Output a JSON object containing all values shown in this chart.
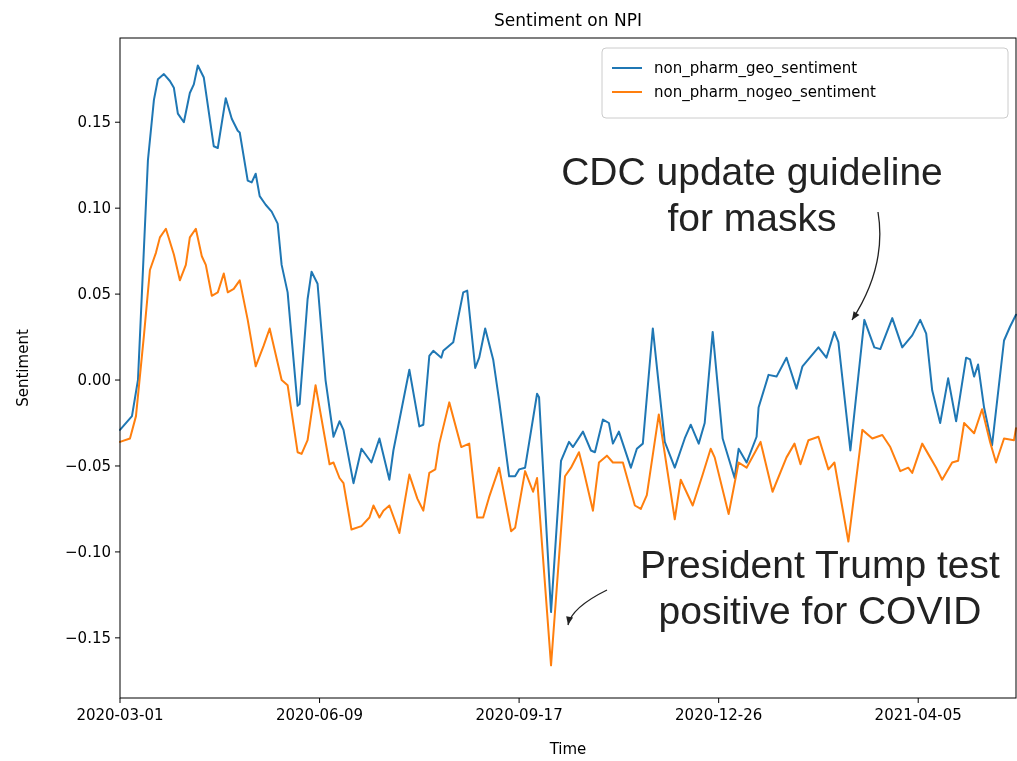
{
  "chart_data": {
    "type": "line",
    "title": "Sentiment on NPI",
    "xlabel": "Time",
    "ylabel": "Sentiment",
    "xlim": [
      "2020-03-01",
      "2021-05-24"
    ],
    "xticks": [
      "2020-03-01",
      "2020-06-09",
      "2020-09-17",
      "2020-12-26",
      "2021-04-05"
    ],
    "ylim": [
      -0.185,
      0.199
    ],
    "yticks": [
      {
        "value": -0.15,
        "label": "−0.15"
      },
      {
        "value": -0.1,
        "label": "−0.10"
      },
      {
        "value": -0.05,
        "label": "−0.05"
      },
      {
        "value": 0,
        "label": "0.00"
      },
      {
        "value": 0.05,
        "label": "0.05"
      },
      {
        "value": 0.1,
        "label": "0.10"
      },
      {
        "value": 0.15,
        "label": "0.15"
      }
    ],
    "legend": "top right",
    "grid": false,
    "annotations": [
      "CDC update guideline\nfor masks",
      "President Trump test\npositive for COVID"
    ],
    "series": [
      {
        "name": "non_pharm_geo_sentiment",
        "color": "#1f77b4",
        "x": [
          "2020-03-01",
          "2020-03-07",
          "2020-03-10",
          "2020-03-15",
          "2020-03-18",
          "2020-03-20",
          "2020-03-23",
          "2020-03-26",
          "2020-03-28",
          "2020-03-30",
          "2020-04-02",
          "2020-04-05",
          "2020-04-07",
          "2020-04-09",
          "2020-04-12",
          "2020-04-17",
          "2020-04-19",
          "2020-04-23",
          "2020-04-26",
          "2020-04-29",
          "2020-04-30",
          "2020-05-04",
          "2020-05-06",
          "2020-05-08",
          "2020-05-10",
          "2020-05-13",
          "2020-05-16",
          "2020-05-19",
          "2020-05-21",
          "2020-05-24",
          "2020-05-29",
          "2020-05-30",
          "2020-06-03",
          "2020-06-05",
          "2020-06-08",
          "2020-06-12",
          "2020-06-16",
          "2020-06-19",
          "2020-06-21",
          "2020-06-26",
          "2020-06-30",
          "2020-07-05",
          "2020-07-09",
          "2020-07-14",
          "2020-07-16",
          "2020-07-24",
          "2020-07-29",
          "2020-07-31",
          "2020-08-03",
          "2020-08-05",
          "2020-08-09",
          "2020-08-10",
          "2020-08-15",
          "2020-08-20",
          "2020-08-22",
          "2020-08-26",
          "2020-08-28",
          "2020-08-31",
          "2020-09-04",
          "2020-09-07",
          "2020-09-12",
          "2020-09-15",
          "2020-09-17",
          "2020-09-20",
          "2020-09-26",
          "2020-09-27",
          "2020-10-03",
          "2020-10-08",
          "2020-10-12",
          "2020-10-14",
          "2020-10-19",
          "2020-10-23",
          "2020-10-25",
          "2020-10-29",
          "2020-11-01",
          "2020-11-03",
          "2020-11-06",
          "2020-11-12",
          "2020-11-15",
          "2020-11-18",
          "2020-11-23",
          "2020-11-29",
          "2020-12-04",
          "2020-12-09",
          "2020-12-12",
          "2020-12-16",
          "2020-12-19",
          "2020-12-23",
          "2020-12-28",
          "2021-01-03",
          "2021-01-05",
          "2021-01-09",
          "2021-01-14",
          "2021-01-15",
          "2021-01-20",
          "2021-01-24",
          "2021-01-29",
          "2021-02-03",
          "2021-02-06",
          "2021-02-14",
          "2021-02-18",
          "2021-02-22",
          "2021-02-24",
          "2021-03-02",
          "2021-03-09",
          "2021-03-14",
          "2021-03-17",
          "2021-03-23",
          "2021-03-28",
          "2021-04-02",
          "2021-04-06",
          "2021-04-09",
          "2021-04-12",
          "2021-04-16",
          "2021-04-20",
          "2021-04-24",
          "2021-04-29",
          "2021-05-01",
          "2021-05-03",
          "2021-05-05",
          "2021-05-08",
          "2021-05-12",
          "2021-05-18",
          "2021-05-21",
          "2021-05-24"
        ],
        "values": [
          -0.029,
          -0.021,
          0.0,
          0.128,
          0.163,
          0.175,
          0.178,
          0.174,
          0.17,
          0.155,
          0.15,
          0.167,
          0.172,
          0.183,
          0.176,
          0.136,
          0.135,
          0.164,
          0.152,
          0.145,
          0.144,
          0.116,
          0.115,
          0.12,
          0.107,
          0.102,
          0.098,
          0.091,
          0.067,
          0.051,
          -0.015,
          -0.014,
          0.047,
          0.063,
          0.056,
          0.0,
          -0.033,
          -0.024,
          -0.029,
          -0.06,
          -0.04,
          -0.048,
          -0.034,
          -0.058,
          -0.041,
          0.006,
          -0.027,
          -0.026,
          0.014,
          0.017,
          0.013,
          0.017,
          0.022,
          0.051,
          0.052,
          0.007,
          0.013,
          0.03,
          0.012,
          -0.012,
          -0.056,
          -0.056,
          -0.052,
          -0.051,
          -0.008,
          -0.01,
          -0.135,
          -0.047,
          -0.036,
          -0.039,
          -0.03,
          -0.041,
          -0.042,
          -0.023,
          -0.025,
          -0.037,
          -0.03,
          -0.051,
          -0.04,
          -0.037,
          0.03,
          -0.036,
          -0.051,
          -0.034,
          -0.026,
          -0.037,
          -0.025,
          0.028,
          -0.034,
          -0.057,
          -0.04,
          -0.048,
          -0.033,
          -0.016,
          0.003,
          0.002,
          0.013,
          -0.005,
          0.008,
          0.019,
          0.013,
          0.028,
          0.022,
          -0.041,
          0.035,
          0.019,
          0.018,
          0.036,
          0.019,
          0.026,
          0.035,
          0.027,
          -0.006,
          -0.025,
          0.001,
          -0.024,
          0.013,
          0.012,
          0.002,
          0.009,
          -0.016,
          -0.038,
          0.023,
          0.031,
          0.038
        ]
      },
      {
        "name": "non_pharm_nogeo_sentiment",
        "color": "#ff7f0e",
        "x": [
          "2020-03-01",
          "2020-03-06",
          "2020-03-09",
          "2020-03-13",
          "2020-03-16",
          "2020-03-19",
          "2020-03-21",
          "2020-03-24",
          "2020-03-28",
          "2020-03-31",
          "2020-04-03",
          "2020-04-05",
          "2020-04-08",
          "2020-04-11",
          "2020-04-13",
          "2020-04-16",
          "2020-04-19",
          "2020-04-22",
          "2020-04-24",
          "2020-04-27",
          "2020-04-30",
          "2020-05-04",
          "2020-05-08",
          "2020-05-12",
          "2020-05-15",
          "2020-05-21",
          "2020-05-24",
          "2020-05-29",
          "2020-05-31",
          "2020-06-03",
          "2020-06-07",
          "2020-06-14",
          "2020-06-16",
          "2020-06-19",
          "2020-06-21",
          "2020-06-25",
          "2020-06-30",
          "2020-07-04",
          "2020-07-06",
          "2020-07-09",
          "2020-07-11",
          "2020-07-14",
          "2020-07-19",
          "2020-07-24",
          "2020-07-28",
          "2020-07-31",
          "2020-08-03",
          "2020-08-06",
          "2020-08-08",
          "2020-08-13",
          "2020-08-19",
          "2020-08-23",
          "2020-08-27",
          "2020-08-30",
          "2020-09-02",
          "2020-09-07",
          "2020-09-13",
          "2020-09-15",
          "2020-09-20",
          "2020-09-24",
          "2020-09-26",
          "2020-10-03",
          "2020-10-10",
          "2020-10-13",
          "2020-10-17",
          "2020-10-19",
          "2020-10-24",
          "2020-10-27",
          "2020-10-31",
          "2020-11-03",
          "2020-11-08",
          "2020-11-14",
          "2020-11-17",
          "2020-11-20",
          "2020-11-26",
          "2020-12-04",
          "2020-12-07",
          "2020-12-13",
          "2020-12-18",
          "2020-12-22",
          "2020-12-24",
          "2020-12-31",
          "2021-01-05",
          "2021-01-09",
          "2021-01-16",
          "2021-01-22",
          "2021-01-29",
          "2021-02-02",
          "2021-02-05",
          "2021-02-09",
          "2021-02-14",
          "2021-02-19",
          "2021-02-22",
          "2021-03-01",
          "2021-03-08",
          "2021-03-13",
          "2021-03-18",
          "2021-03-22",
          "2021-03-27",
          "2021-03-31",
          "2021-04-02",
          "2021-04-07",
          "2021-04-11",
          "2021-04-14",
          "2021-04-17",
          "2021-04-22",
          "2021-04-25",
          "2021-04-28",
          "2021-05-03",
          "2021-05-07",
          "2021-05-11",
          "2021-05-14",
          "2021-05-18",
          "2021-05-23",
          "2021-05-24"
        ],
        "values": [
          -0.036,
          -0.034,
          -0.021,
          0.026,
          0.064,
          0.074,
          0.083,
          0.088,
          0.073,
          0.058,
          0.067,
          0.083,
          0.088,
          0.072,
          0.067,
          0.049,
          0.051,
          0.062,
          0.051,
          0.053,
          0.058,
          0.035,
          0.008,
          0.02,
          0.03,
          0.0,
          -0.003,
          -0.042,
          -0.043,
          -0.035,
          -0.003,
          -0.049,
          -0.048,
          -0.057,
          -0.06,
          -0.087,
          -0.085,
          -0.08,
          -0.073,
          -0.08,
          -0.076,
          -0.073,
          -0.089,
          -0.055,
          -0.069,
          -0.076,
          -0.054,
          -0.052,
          -0.037,
          -0.013,
          -0.039,
          -0.037,
          -0.08,
          -0.08,
          -0.068,
          -0.051,
          -0.088,
          -0.086,
          -0.053,
          -0.065,
          -0.057,
          -0.166,
          -0.056,
          -0.051,
          -0.042,
          -0.051,
          -0.076,
          -0.048,
          -0.044,
          -0.048,
          -0.048,
          -0.073,
          -0.075,
          -0.067,
          -0.02,
          -0.081,
          -0.058,
          -0.073,
          -0.055,
          -0.04,
          -0.045,
          -0.078,
          -0.048,
          -0.051,
          -0.036,
          -0.065,
          -0.045,
          -0.037,
          -0.049,
          -0.035,
          -0.033,
          -0.052,
          -0.048,
          -0.094,
          -0.029,
          -0.034,
          -0.032,
          -0.039,
          -0.053,
          -0.051,
          -0.054,
          -0.037,
          -0.045,
          -0.051,
          -0.058,
          -0.048,
          -0.047,
          -0.025,
          -0.031,
          -0.017,
          -0.036,
          -0.048,
          -0.034,
          -0.035,
          -0.028
        ]
      }
    ]
  }
}
